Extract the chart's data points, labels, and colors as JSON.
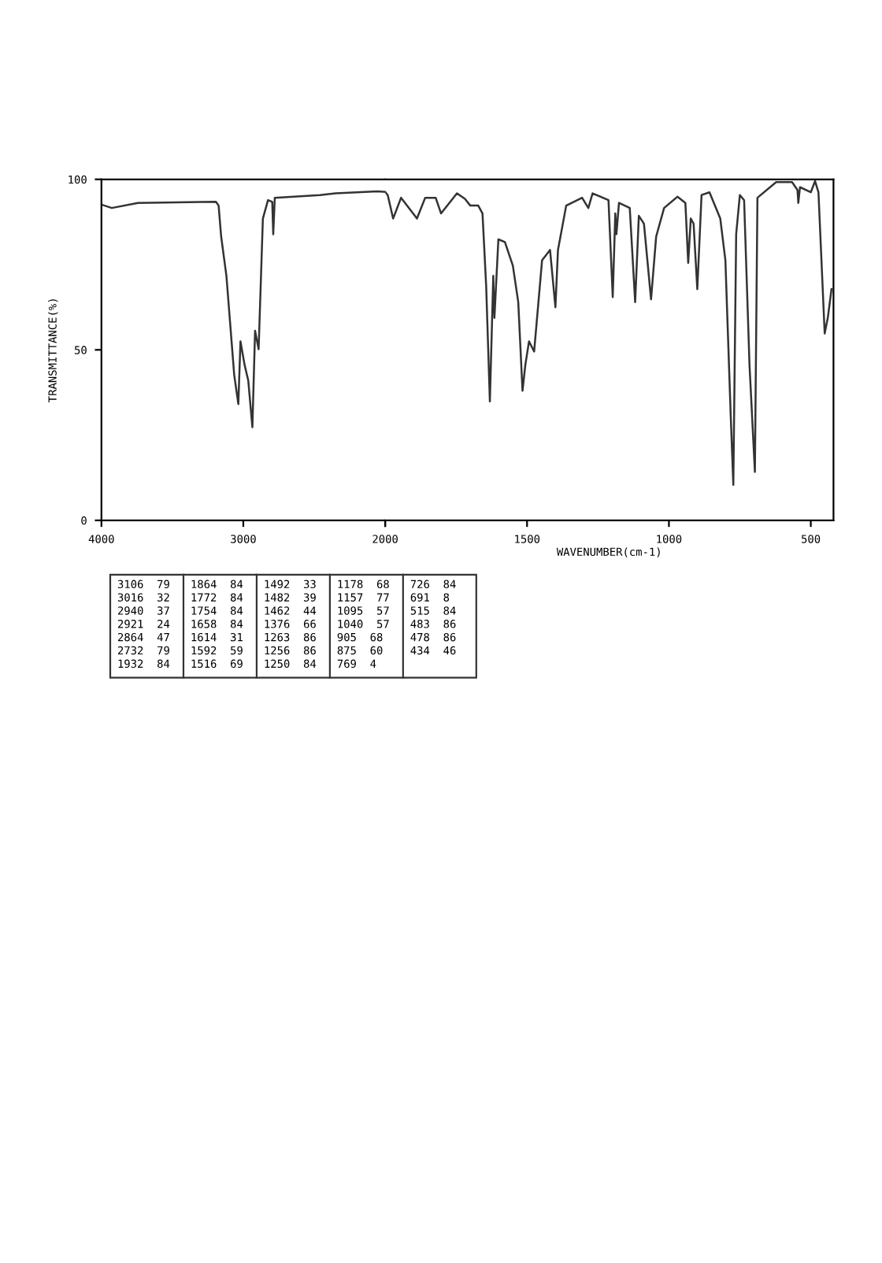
{
  "chart_data": [
    {
      "type": "line",
      "ylabel": "TRANSMITTANCE(%)",
      "xlim": [
        4000,
        2000
      ],
      "xticks": [
        4000,
        3000,
        {
          "value": 2000,
          "label": null
        }
      ],
      "ylim": [
        0,
        100
      ],
      "yticks": [
        0,
        50,
        100
      ],
      "grid": false,
      "legend": false,
      "marker": "none",
      "line_style": "solid",
      "series": [
        {
          "color": "#333333",
          "x": [
            4000,
            3927,
            3743,
            3193,
            3174,
            3156,
            3119,
            3064,
            3035,
            3020,
            2991,
            2965,
            2936,
            2917,
            2892,
            2862,
            2826,
            2796,
            2789,
            2778,
            2459,
            2349,
            2055,
            2000
          ],
          "values": [
            92.6,
            91.6,
            93.1,
            93.4,
            92.3,
            83.2,
            71.7,
            42.6,
            34.1,
            52.5,
            45.6,
            41,
            27.3,
            55.6,
            50.2,
            88.5,
            93.9,
            93.4,
            83.9,
            94.6,
            95.4,
            95.9,
            96.5,
            96.3
          ]
        }
      ],
      "annotations": [
        "3106  79",
        "3016  32",
        "2940  37",
        "2921  24",
        "2864  47",
        "2732  79",
        "1932  84",
        "1864  84",
        "1772  84",
        "1754  84",
        "1658  84",
        "1614  31",
        "1592  59",
        "1516  69",
        "1492  33",
        "1482  39",
        "1462  44",
        "1376  66",
        "1263  86",
        "1256  86",
        "1250  84",
        "1178  68",
        "1157  77",
        "1095  57",
        "1040  57",
        "905  68",
        "875  60",
        "769  4",
        "726  84",
        "691  8",
        "515  84",
        "483  86",
        "478  86",
        "434  46"
      ]
    },
    {
      "type": "line",
      "xlabel": "WAVENUMBER(cm-1)",
      "xlim": [
        2000,
        420
      ],
      "xticks": [
        2000,
        1500,
        1000,
        500
      ],
      "ylim": [
        0,
        100
      ],
      "yticks": [
        0,
        50,
        100
      ],
      "tick_labels": "x",
      "grid": false,
      "legend": false,
      "marker": "none",
      "line_style": "solid",
      "series": [
        {
          "color": "#333333",
          "x": [
            2000,
            1991,
            1972,
            1944,
            1888,
            1859,
            1822,
            1803,
            1747,
            1719,
            1700,
            1672,
            1657,
            1644,
            1631,
            1619,
            1615,
            1601,
            1578,
            1550,
            1531,
            1516,
            1506,
            1493,
            1475,
            1447,
            1419,
            1400,
            1391,
            1362,
            1306,
            1284,
            1269,
            1213,
            1198,
            1189,
            1185,
            1176,
            1138,
            1119,
            1106,
            1088,
            1063,
            1045,
            1017,
            970,
            942,
            932,
            923,
            913,
            900,
            885,
            857,
            819,
            801,
            782,
            773,
            763,
            750,
            735,
            716,
            697,
            688,
            622,
            566,
            547,
            544,
            538,
            500,
            485,
            473,
            451,
            440,
            427
          ],
          "values": [
            96.3,
            95.4,
            88.5,
            94.6,
            88.5,
            94.6,
            94.6,
            90,
            95.9,
            94.3,
            92.3,
            92.3,
            90,
            68.6,
            34.9,
            71.7,
            59.4,
            82.4,
            81.6,
            74.7,
            64,
            38,
            45.6,
            52.5,
            49.5,
            76.3,
            79.3,
            62.5,
            79.3,
            92.3,
            94.6,
            91.6,
            95.9,
            93.9,
            65.5,
            90,
            83.9,
            93.1,
            91.6,
            64,
            89.3,
            87,
            64.8,
            83.2,
            91.6,
            94.9,
            93.1,
            75.5,
            88.5,
            87,
            67.8,
            95.4,
            96.2,
            88.5,
            76.3,
            30.3,
            10.4,
            83.9,
            95.4,
            93.9,
            45.6,
            14.2,
            94.6,
            99.2,
            99.2,
            96.9,
            93.1,
            97.7,
            96.2,
            99.5,
            96.2,
            54.8,
            59.4,
            67.8
          ]
        }
      ]
    }
  ]
}
